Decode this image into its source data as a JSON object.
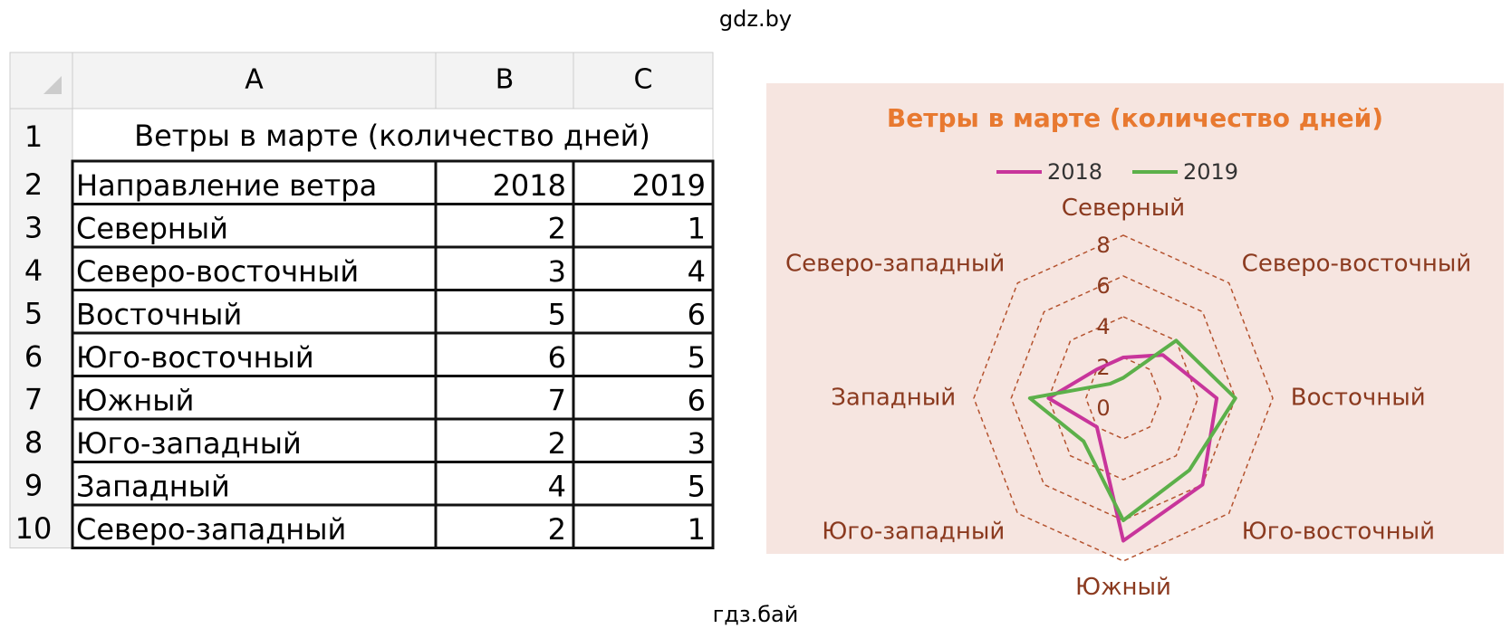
{
  "watermark_top": "gdz.by",
  "watermark_bottom": "гдз.бай",
  "spreadsheet": {
    "column_headers": [
      "A",
      "B",
      "C"
    ],
    "row_numbers": [
      1,
      2,
      3,
      4,
      5,
      6,
      7,
      8,
      9,
      10
    ],
    "title": "Ветры в марте (количество дней)",
    "header": [
      "Направление ветра",
      "2018",
      "2019"
    ],
    "rows": [
      [
        "Северный",
        2,
        1
      ],
      [
        "Северо-восточный",
        3,
        4
      ],
      [
        "Восточный",
        5,
        6
      ],
      [
        "Юго-восточный",
        6,
        5
      ],
      [
        "Южный",
        7,
        6
      ],
      [
        "Юго-западный",
        2,
        3
      ],
      [
        "Западный",
        4,
        5
      ],
      [
        "Северо-западный",
        2,
        1
      ]
    ]
  },
  "chart_data": {
    "type": "radar",
    "title": "Ветры в марте (количество дней)",
    "categories": [
      "Северный",
      "Северо-восточный",
      "Восточный",
      "Юго-восточный",
      "Южный",
      "Юго-западный",
      "Западный",
      "Северо-западный"
    ],
    "series": [
      {
        "name": "2018",
        "color": "#c8359b",
        "values": [
          2,
          3,
          5,
          6,
          7,
          2,
          4,
          2
        ]
      },
      {
        "name": "2019",
        "color": "#5cb04a",
        "values": [
          1,
          4,
          6,
          5,
          6,
          3,
          5,
          1
        ]
      }
    ],
    "rlim": [
      0,
      8
    ],
    "rticks": [
      0,
      2,
      4,
      6,
      8
    ],
    "grid": true,
    "legend": "top"
  }
}
